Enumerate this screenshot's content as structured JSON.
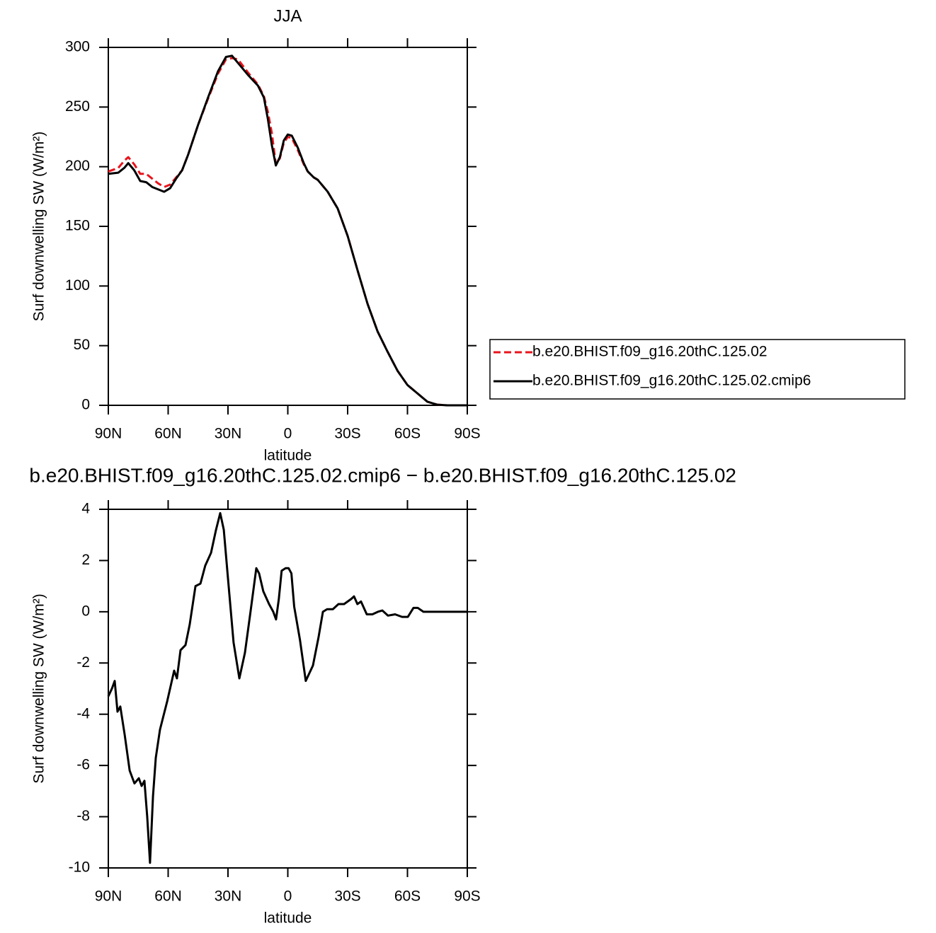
{
  "chart_data": [
    {
      "type": "line",
      "title": "JJA",
      "xlabel": "latitude",
      "ylabel": "Surf downwelling SW (W/m²)",
      "xlim": [
        90,
        -90
      ],
      "xticks": [
        {
          "value": 90,
          "label": "90N"
        },
        {
          "value": 60,
          "label": "60N"
        },
        {
          "value": 30,
          "label": "30N"
        },
        0,
        {
          "value": -30,
          "label": "30S"
        },
        {
          "value": -60,
          "label": "60S"
        },
        {
          "value": -90,
          "label": "90S"
        }
      ],
      "ylim": [
        0,
        300
      ],
      "yticks": [
        0,
        50,
        100,
        150,
        200,
        250,
        300
      ],
      "legend": "right",
      "x": [
        90,
        85,
        82,
        80,
        77,
        74,
        71,
        68,
        65,
        62,
        59,
        56,
        53,
        50,
        45,
        40,
        35,
        31,
        28,
        25,
        20,
        15,
        12,
        10,
        8,
        6,
        4,
        2,
        0,
        -2,
        -5,
        -8,
        -10,
        -13,
        -15,
        -20,
        -25,
        -30,
        -35,
        -40,
        -45,
        -50,
        -55,
        -60,
        -65,
        -70,
        -75,
        -80,
        -85,
        -90
      ],
      "series": [
        {
          "name": "b.e20.BHIST.f09_g16.20thC.125.02",
          "color": "#e8141c",
          "line_style": "dashed",
          "values": [
            196,
            199,
            205,
            208,
            202,
            194,
            194,
            190,
            186,
            183,
            185,
            191,
            197,
            210,
            235,
            257,
            278,
            290,
            291,
            290,
            279,
            269,
            259,
            246,
            228,
            202,
            207,
            220,
            225,
            224,
            214,
            202,
            196,
            191,
            189,
            179,
            165,
            142,
            113,
            85,
            62,
            45,
            29,
            17,
            10,
            3,
            0.5,
            0,
            0,
            0
          ]
        },
        {
          "name": "b.e20.BHIST.f09_g16.20thC.125.02.cmip6",
          "color": "#000000",
          "line_style": "solid",
          "values": [
            194,
            195,
            199,
            203,
            197,
            188,
            187,
            183,
            181,
            179,
            182,
            190,
            197,
            210,
            235,
            258,
            280,
            292,
            293,
            287,
            277,
            268,
            258,
            240,
            218,
            201,
            208,
            222,
            227,
            226,
            216,
            203,
            196,
            191,
            189,
            179,
            165,
            142,
            113,
            85,
            62,
            45,
            29,
            17,
            10,
            3,
            0.5,
            0,
            0,
            0
          ]
        }
      ]
    },
    {
      "type": "line",
      "title": "b.e20.BHIST.f09_g16.20thC.125.02.cmip6 − b.e20.BHIST.f09_g16.20thC.125.02",
      "xlabel": "latitude",
      "ylabel": "Surf downwelling SW (W/m²)",
      "xlim": [
        90,
        -90
      ],
      "xticks": [
        {
          "value": 90,
          "label": "90N"
        },
        {
          "value": 60,
          "label": "60N"
        },
        {
          "value": 30,
          "label": "30N"
        },
        0,
        {
          "value": -30,
          "label": "30S"
        },
        {
          "value": -60,
          "label": "60S"
        },
        {
          "value": -90,
          "label": "90S"
        }
      ],
      "ylim": [
        -10,
        4
      ],
      "yticks": [
        -10,
        -8,
        -6,
        -4,
        -2,
        0,
        2,
        4
      ],
      "x": [
        90,
        88.2,
        86.8,
        85.4,
        84,
        81.8,
        79.3,
        76.9,
        74.7,
        73.3,
        71.9,
        70.5,
        69.1,
        67.6,
        66.2,
        64.1,
        60.5,
        57,
        55.6,
        53.8,
        51.3,
        49.2,
        46.3,
        43.8,
        41.4,
        38.5,
        36,
        33.9,
        32.1,
        30,
        27.2,
        24.3,
        21.5,
        18.7,
        15.8,
        14.4,
        12.3,
        9.4,
        7.3,
        5.9,
        4.5,
        3.1,
        1.1,
        -0.4,
        -1.8,
        -3.2,
        -6.1,
        -9,
        -12.6,
        -15.4,
        -17.6,
        -19.7,
        -22.6,
        -25.4,
        -28.2,
        -31.8,
        -33.2,
        -34.9,
        -36.7,
        -39.6,
        -42.4,
        -45.2,
        -47.4,
        -50.2,
        -53.8,
        -57.3,
        -60.2,
        -63,
        -65.2,
        -68,
        -75.8,
        -90
      ],
      "series": [
        {
          "color": "#000000",
          "line_style": "solid",
          "values": [
            -3.3,
            -3.0,
            -2.7,
            -3.9,
            -3.7,
            -4.8,
            -6.2,
            -6.7,
            -6.5,
            -6.8,
            -6.6,
            -8,
            -9.8,
            -7.2,
            -5.7,
            -4.6,
            -3.5,
            -2.3,
            -2.6,
            -1.5,
            -1.3,
            -0.5,
            1,
            1.1,
            1.8,
            2.3,
            3.2,
            3.85,
            3.2,
            1.3,
            -1.2,
            -2.6,
            -1.6,
            0,
            1.7,
            1.5,
            0.8,
            0.3,
            0,
            -0.3,
            0.5,
            1.6,
            1.7,
            1.7,
            1.5,
            0.2,
            -1.1,
            -2.7,
            -2.1,
            -1,
            0,
            0.1,
            0.1,
            0.3,
            0.3,
            0.5,
            0.6,
            0.3,
            0.4,
            -0.1,
            -0.1,
            0,
            0.05,
            -0.15,
            -0.1,
            -0.2,
            -0.2,
            0.15,
            0.15,
            0,
            0,
            0
          ]
        }
      ]
    }
  ]
}
